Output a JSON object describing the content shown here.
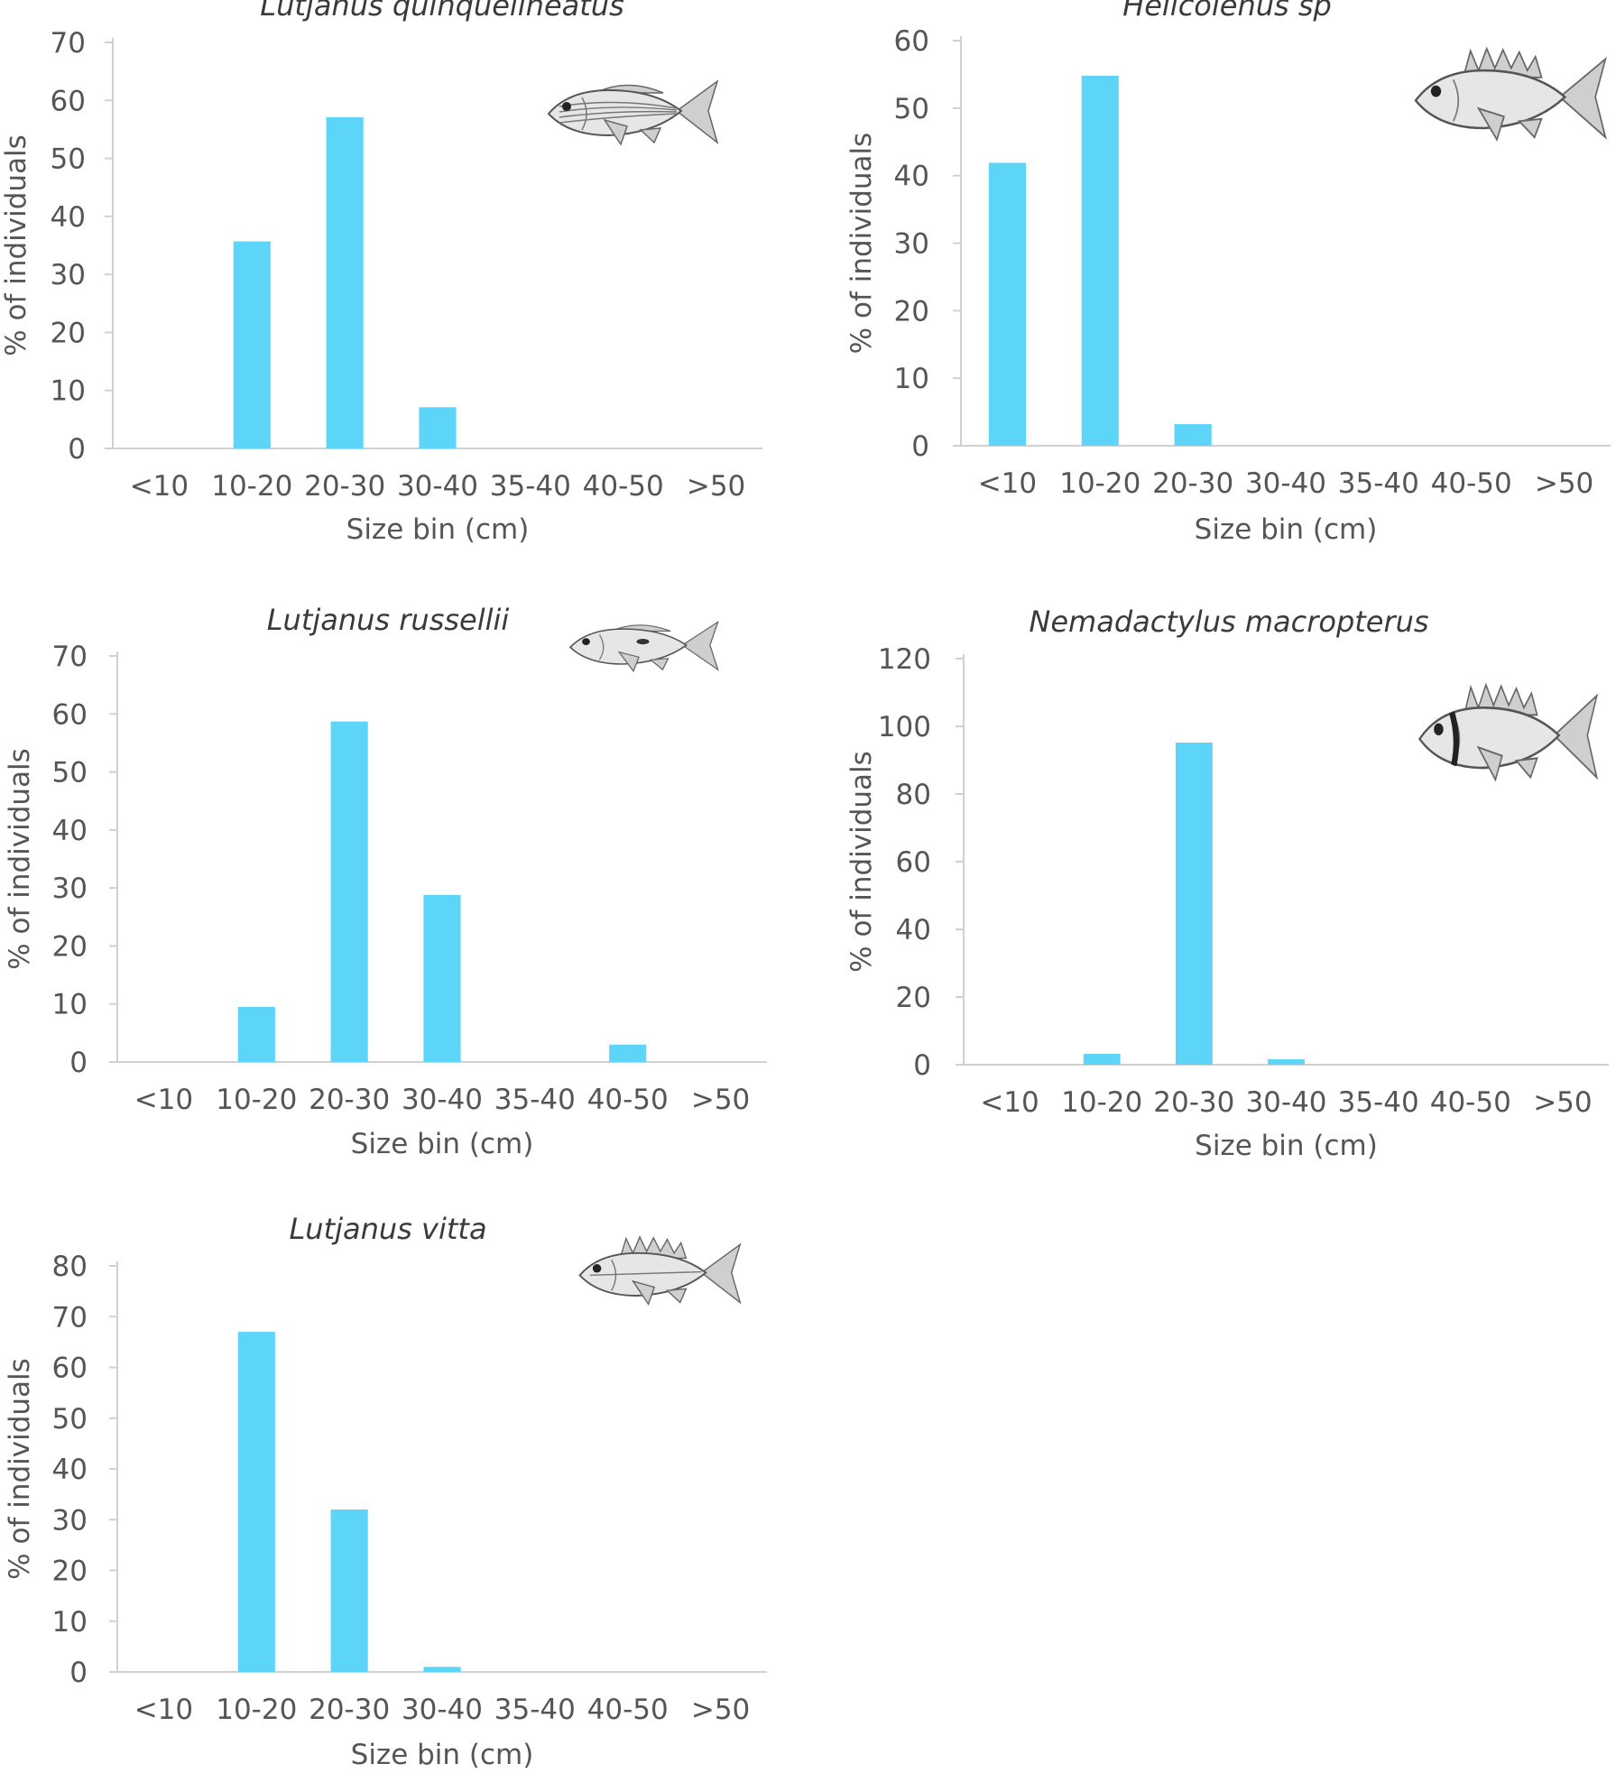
{
  "colors": {
    "bar": "#5dd5f9",
    "axis": "#d0d0d0",
    "text": "#555555"
  },
  "chart_data": [
    {
      "type": "bar",
      "title": "Lutjanus quinquelineatus",
      "icon": "striped-snapper-fish-icon",
      "categories": [
        "<10",
        "10-20",
        "20-30",
        "30-40",
        "35-40",
        "40-50",
        ">50"
      ],
      "values": [
        0,
        35.7,
        57.1,
        7.1,
        0,
        0,
        0
      ],
      "yticks": [
        0,
        10,
        20,
        30,
        40,
        50,
        60,
        70
      ],
      "ylim": [
        0,
        70
      ],
      "xlabel": "Size bin (cm)",
      "ylabel": "% of individuals"
    },
    {
      "type": "bar",
      "title": "Helicolenus sp",
      "icon": "scorpionfish-icon",
      "categories": [
        "<10",
        "10-20",
        "20-30",
        "30-40",
        "35-40",
        "40-50",
        ">50"
      ],
      "values": [
        41.9,
        54.8,
        3.2,
        0,
        0,
        0,
        0
      ],
      "yticks": [
        0,
        10,
        20,
        30,
        40,
        50,
        60
      ],
      "ylim": [
        0,
        60
      ],
      "xlabel": "Size bin (cm)",
      "ylabel": "% of individuals"
    },
    {
      "type": "bar",
      "title": "Lutjanus russellii",
      "icon": "snapper-fish-icon",
      "categories": [
        "<10",
        "10-20",
        "20-30",
        "30-40",
        "35-40",
        "40-50",
        ">50"
      ],
      "values": [
        0,
        9.5,
        58.7,
        28.8,
        0,
        3.0,
        0
      ],
      "yticks": [
        0,
        10,
        20,
        30,
        40,
        50,
        60,
        70
      ],
      "ylim": [
        0,
        70
      ],
      "xlabel": "Size bin (cm)",
      "ylabel": "% of individuals"
    },
    {
      "type": "bar",
      "title": "Nemadactylus macropterus",
      "icon": "morwong-fish-icon",
      "categories": [
        "<10",
        "10-20",
        "20-30",
        "30-40",
        "35-40",
        "40-50",
        ">50"
      ],
      "values": [
        0,
        3.2,
        95.2,
        1.6,
        0,
        0,
        0
      ],
      "yticks": [
        0,
        20,
        40,
        60,
        80,
        100,
        120
      ],
      "ylim": [
        0,
        120
      ],
      "xlabel": "Size bin (cm)",
      "ylabel": "% of individuals"
    },
    {
      "type": "bar",
      "title": "Lutjanus vitta",
      "icon": "brownstripe-snapper-fish-icon",
      "categories": [
        "<10",
        "10-20",
        "20-30",
        "30-40",
        "35-40",
        "40-50",
        ">50"
      ],
      "values": [
        0,
        67.0,
        32.0,
        1.0,
        0,
        0,
        0
      ],
      "yticks": [
        0,
        10,
        20,
        30,
        40,
        50,
        60,
        70,
        80
      ],
      "ylim": [
        0,
        80
      ],
      "xlabel": "Size bin (cm)",
      "ylabel": "% of individuals"
    }
  ]
}
